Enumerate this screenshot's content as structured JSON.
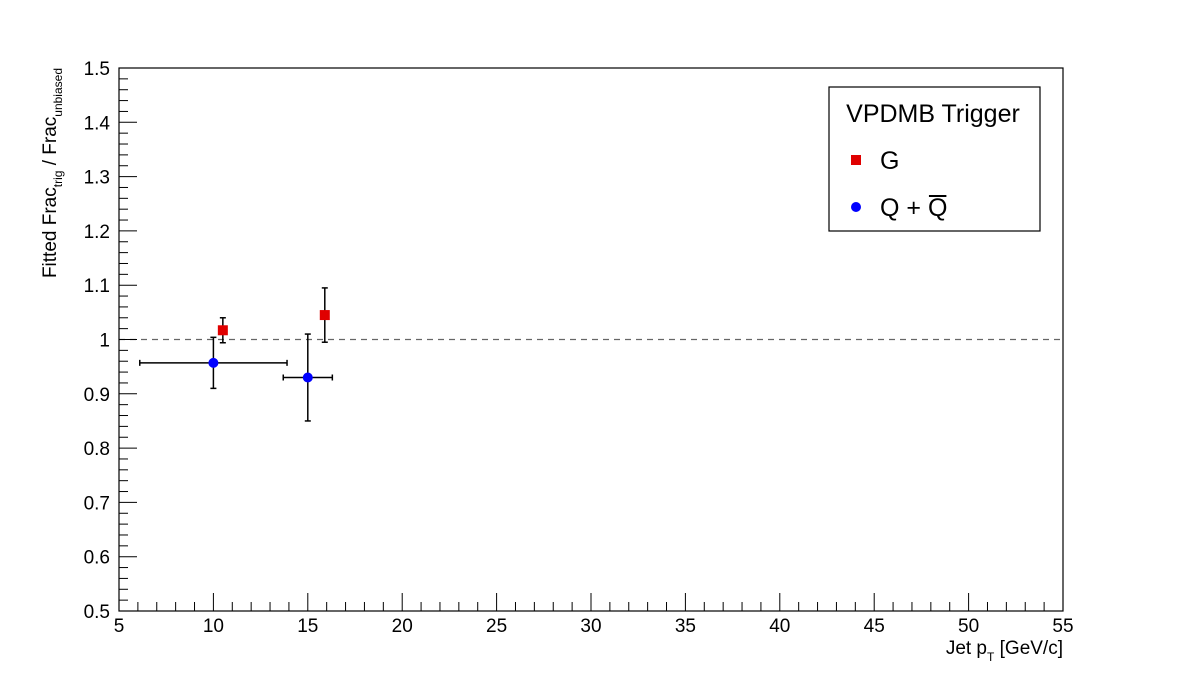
{
  "chart_data": {
    "type": "scatter",
    "title": "",
    "xlabel": {
      "main": "Jet p",
      "sub": "T",
      "rest": " [GeV/c]"
    },
    "ylabel": {
      "part1": "Fitted Frac",
      "sub1": "trig",
      "part2": " / Frac",
      "sub2": "unbiased"
    },
    "xlim": [
      5,
      55
    ],
    "ylim": [
      0.5,
      1.5
    ],
    "x_ticks": [
      "5",
      "10",
      "15",
      "20",
      "25",
      "30",
      "35",
      "40",
      "45",
      "50",
      "55"
    ],
    "y_ticks": [
      "0.5",
      "0.6",
      "0.7",
      "0.8",
      "0.9",
      "1",
      "1.1",
      "1.2",
      "1.3",
      "1.4",
      "1.5"
    ],
    "reference_line": {
      "y": 1.0,
      "style": "dashed"
    },
    "legend": {
      "title": "VPDMB Trigger",
      "position": "top-right"
    },
    "series": [
      {
        "name": "G",
        "color": "#e00000",
        "marker": "square",
        "points": [
          {
            "x": 10.5,
            "y": 1.017,
            "xerr": 0,
            "yerr": 0.023
          },
          {
            "x": 15.9,
            "y": 1.045,
            "xerr": 0,
            "yerr": 0.05
          }
        ]
      },
      {
        "name": "Q + Q̄",
        "name_main": "Q + ",
        "name_bar": "Q",
        "color": "#0000ff",
        "marker": "circle",
        "points": [
          {
            "x": 10.0,
            "y": 0.957,
            "xerr": 3.9,
            "yerr": 0.047
          },
          {
            "x": 15.0,
            "y": 0.93,
            "xerr": 1.3,
            "yerr": 0.08
          }
        ]
      }
    ]
  }
}
